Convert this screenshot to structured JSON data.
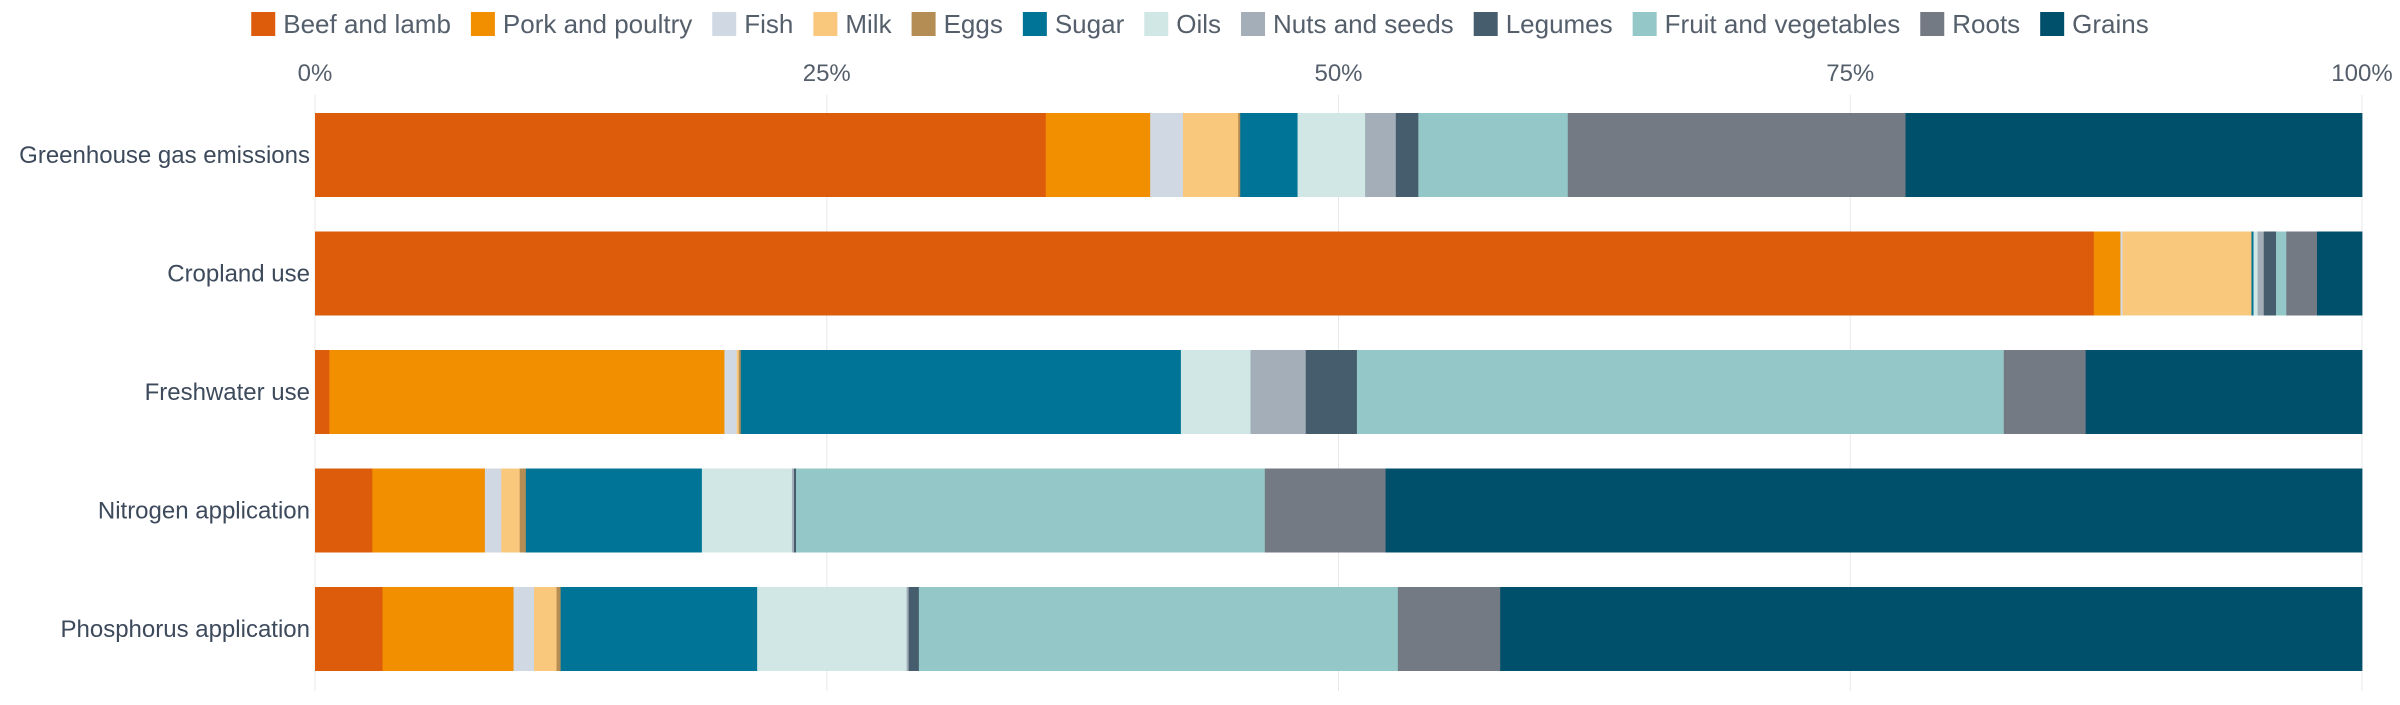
{
  "chart_data": {
    "type": "bar",
    "orientation": "horizontal",
    "stacked": true,
    "normalized": true,
    "categories": [
      "Greenhouse gas emissions",
      "Cropland use",
      "Freshwater use",
      "Nitrogen application",
      "Phosphorus application"
    ],
    "x_ticks": [
      "0%",
      "25%",
      "50%",
      "75%",
      "100%"
    ],
    "xlim": [
      0,
      100
    ],
    "grid": true,
    "legend_position": "top",
    "series": [
      {
        "name": "Beef and lamb",
        "color": "#dd5c0b",
        "values": [
          35.7,
          86.9,
          0.7,
          2.8,
          3.3
        ]
      },
      {
        "name": "Pork and poultry",
        "color": "#f18f00",
        "values": [
          5.1,
          1.3,
          19.3,
          5.5,
          6.4
        ]
      },
      {
        "name": "Fish",
        "color": "#d0d9e3",
        "values": [
          1.6,
          0.1,
          0.6,
          0.8,
          1.0
        ]
      },
      {
        "name": "Milk",
        "color": "#fac87c",
        "values": [
          2.7,
          6.3,
          0.1,
          0.9,
          1.1
        ]
      },
      {
        "name": "Eggs",
        "color": "#b48d55",
        "values": [
          0.1,
          0.0,
          0.1,
          0.3,
          0.2
        ]
      },
      {
        "name": "Sugar",
        "color": "#007497",
        "values": [
          2.8,
          0.1,
          21.5,
          8.6,
          9.6
        ]
      },
      {
        "name": "Oils",
        "color": "#d1e7e5",
        "values": [
          3.3,
          0.2,
          3.4,
          4.4,
          7.3
        ]
      },
      {
        "name": "Nuts and seeds",
        "color": "#a3aeb8",
        "values": [
          1.5,
          0.3,
          2.7,
          0.1,
          0.1
        ]
      },
      {
        "name": "Legumes",
        "color": "#465d6d",
        "values": [
          1.1,
          0.6,
          2.5,
          0.1,
          0.5
        ]
      },
      {
        "name": "Fruit and vegetables",
        "color": "#94c8c8",
        "values": [
          7.3,
          0.5,
          31.6,
          22.9,
          23.4
        ]
      },
      {
        "name": "Roots",
        "color": "#737a84",
        "values": [
          16.5,
          1.5,
          4.0,
          5.9,
          5.0
        ]
      },
      {
        "name": "Grains",
        "color": "#00506c",
        "values": [
          22.3,
          2.2,
          13.5,
          47.7,
          42.1
        ]
      }
    ]
  }
}
